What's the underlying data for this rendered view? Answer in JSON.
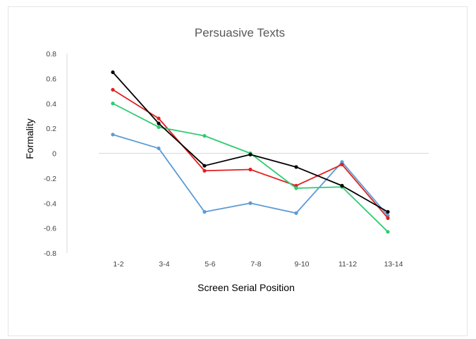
{
  "chart_data": {
    "type": "line",
    "title": "Persuasive Texts",
    "xlabel": "Screen Serial Position",
    "ylabel": "Formality",
    "categories": [
      "1-2",
      "3-4",
      "5-6",
      "7-8",
      "9-10",
      "11-12",
      "13-14"
    ],
    "ylim": [
      -0.8,
      0.8
    ],
    "yticks": [
      "0.8",
      "0.6",
      "0.4",
      "0.2",
      "0",
      "-0.2",
      "-0.4",
      "-0.6",
      "-0.8"
    ],
    "legend": false,
    "grid": false,
    "series": [
      {
        "color": "#5b9bd5",
        "values": [
          0.15,
          0.04,
          -0.47,
          -0.4,
          -0.48,
          -0.07,
          -0.5
        ]
      },
      {
        "color": "#e02020",
        "values": [
          0.51,
          0.28,
          -0.14,
          -0.13,
          -0.26,
          -0.09,
          -0.52
        ]
      },
      {
        "color": "#2ecc71",
        "values": [
          0.4,
          0.21,
          0.14,
          0.0,
          -0.28,
          -0.27,
          -0.63
        ]
      },
      {
        "color": "#000000",
        "values": [
          0.65,
          0.24,
          -0.1,
          -0.01,
          -0.11,
          -0.26,
          -0.47
        ]
      }
    ]
  }
}
